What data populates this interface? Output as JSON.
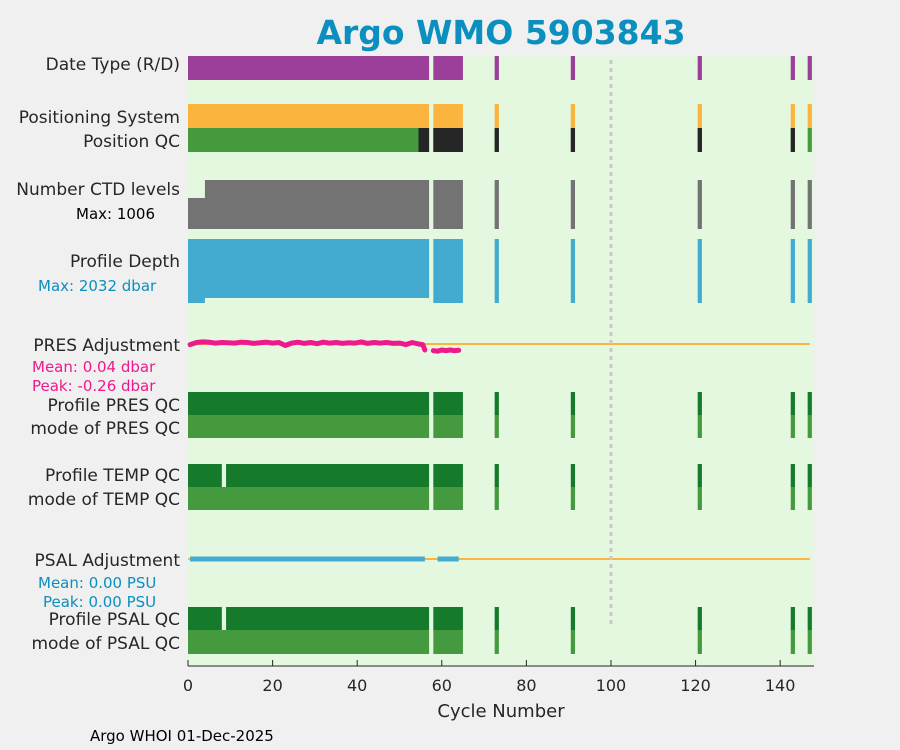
{
  "chart_data": {
    "type": "bar",
    "title": "Argo WMO 5903843",
    "xlabel": "Cycle Number",
    "xlim": [
      0,
      148
    ],
    "xticks": [
      0,
      20,
      40,
      60,
      80,
      100,
      120,
      140
    ],
    "vline_x": 100,
    "footer": "Argo WHOI 01-Dec-2025",
    "colors": {
      "title": "#0a8fbf",
      "plot_bg": "#e4f8e0",
      "page_bg": "#f0f0f0",
      "purple": "#9b3f9b",
      "orange": "#fbb53f",
      "qc_good": "#45993f",
      "qc_dark": "#262626",
      "gray": "#737373",
      "blue": "#43abd0",
      "pink": "#ee1a8c",
      "dark_green": "#157a2b",
      "vline": "#c8c8c8"
    },
    "stats": {
      "ctd_max": "Max: 1006",
      "depth_max": "Max: 2032 dbar",
      "pres_mean": "Mean: 0.04 dbar",
      "pres_peak": "Peak: -0.26 dbar",
      "psal_mean": "Mean: 0.00 PSU",
      "psal_peak": "Peak: 0.00 PSU"
    },
    "row_labels": {
      "date_type": "Date Type (R/D)",
      "positioning": "Positioning System",
      "position_qc": "Position QC",
      "ctd_levels": "Number CTD levels",
      "profile_depth": "Profile Depth",
      "pres_adj": "PRES Adjustment",
      "prof_pres_qc": "Profile PRES QC",
      "mode_pres_qc": "mode of PRES QC",
      "prof_temp_qc": "Profile TEMP QC",
      "mode_temp_qc": "mode of TEMP QC",
      "psal_adj": "PSAL Adjustment",
      "prof_psal_qc": "Profile PSAL QC",
      "mode_psal_qc": "mode of PSAL QC"
    },
    "cycle_ranges": [
      [
        0,
        57
      ],
      [
        58,
        65
      ]
    ],
    "isolated_cycles": [
      73,
      91,
      121,
      143,
      147
    ],
    "position_qc_dark_ranges": [
      [
        54.5,
        57
      ],
      [
        58,
        65
      ]
    ],
    "position_qc_dark_cycles": [
      73,
      91,
      121,
      143
    ],
    "temp_qc_gap_cycles": [
      8.5
    ],
    "psal_adj_segments": [
      [
        0.5,
        56
      ],
      [
        59,
        64
      ]
    ],
    "pres_adjustment_line": {
      "x": [
        0.5,
        2,
        3.5,
        5,
        6.5,
        8,
        9.5,
        11,
        12.5,
        14,
        15.5,
        17,
        18.5,
        20,
        21.5,
        23,
        24.5,
        26,
        27.5,
        29,
        30.5,
        32,
        33.5,
        35,
        36.5,
        38,
        39.5,
        41,
        42.5,
        44,
        45.5,
        47,
        48.5,
        50,
        51.5,
        53,
        54.5,
        55.5,
        56
      ],
      "y": [
        -0.02,
        0.05,
        0.07,
        0.06,
        0.03,
        0.05,
        0.04,
        0.03,
        0.06,
        0.05,
        0.02,
        0.04,
        0.06,
        0.03,
        0.05,
        -0.05,
        0.03,
        0.06,
        0.02,
        0.05,
        0.01,
        0.06,
        0.03,
        0.05,
        0.02,
        0.04,
        0.03,
        0.07,
        0.02,
        0.05,
        0.03,
        0.05,
        0.02,
        0.03,
        -0.02,
        0.05,
        0.0,
        -0.02,
        -0.2
      ]
    },
    "pres_adjustment_line2": {
      "x": [
        58,
        59,
        60,
        61,
        62,
        63,
        64
      ],
      "y": [
        -0.22,
        -0.24,
        -0.2,
        -0.22,
        -0.2,
        -0.22,
        -0.21
      ]
    }
  }
}
